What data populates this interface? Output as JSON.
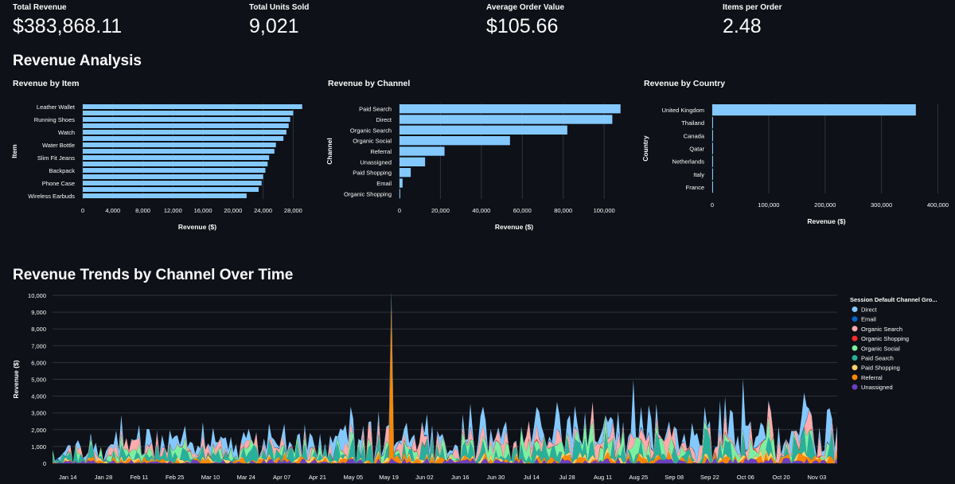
{
  "metrics": [
    {
      "label": "Total Revenue",
      "value": "$383,868.11"
    },
    {
      "label": "Total Units Sold",
      "value": "9,021"
    },
    {
      "label": "Average Order Value",
      "value": "$105.66"
    },
    {
      "label": "Items per Order",
      "value": "2.48"
    }
  ],
  "sections": {
    "revenue_analysis": "Revenue Analysis",
    "revenue_trends": "Revenue Trends by Channel Over Time"
  },
  "colors": {
    "bar": "#83c9ff",
    "grid": "#31333f",
    "Direct": "#83c9ff",
    "Email": "#0068c9",
    "Organic Search": "#ffabab",
    "Organic Shopping": "#ff2b2b",
    "Organic Social": "#7defa1",
    "Paid Search": "#29b09d",
    "Paid Shopping": "#ffd16a",
    "Referral": "#ff8700",
    "Unassigned": "#6d3fc0"
  },
  "chart_data": [
    {
      "type": "bar",
      "orientation": "horizontal",
      "title": "Revenue by Item",
      "xlabel": "Revenue ($)",
      "ylabel": "Item",
      "xlim": [
        0,
        30500
      ],
      "xticks": [
        0,
        4000,
        8000,
        12000,
        16000,
        20000,
        24000,
        28000
      ],
      "xtick_labels": [
        "0",
        "4,000",
        "8,000",
        "12,000",
        "16,000",
        "20,000",
        "24,000",
        "28,000"
      ],
      "category_labels": [
        "Leather Wallet",
        "",
        "Running Shoes",
        "",
        "Watch",
        "",
        "Water Bottle",
        "",
        "Slim Fit Jeans",
        "",
        "Backpack",
        "",
        "Phone Case",
        "",
        "Wireless Earbuds"
      ],
      "values": [
        29200,
        28000,
        27600,
        27400,
        27100,
        26700,
        25700,
        25500,
        24800,
        24600,
        24300,
        24000,
        23800,
        23400,
        21800
      ]
    },
    {
      "type": "bar",
      "orientation": "horizontal",
      "title": "Revenue by Channel",
      "xlabel": "Revenue ($)",
      "ylabel": "Channel",
      "xlim": [
        0,
        112000
      ],
      "xticks": [
        0,
        20000,
        40000,
        60000,
        80000,
        100000
      ],
      "xtick_labels": [
        "0",
        "20,000",
        "40,000",
        "60,000",
        "80,000",
        "100,000"
      ],
      "categories": [
        "Paid Search",
        "Direct",
        "Organic Search",
        "Organic Social",
        "Referral",
        "Unassigned",
        "Paid Shopping",
        "Email",
        "Organic Shopping"
      ],
      "values": [
        108000,
        104000,
        82000,
        54000,
        22000,
        12500,
        5500,
        1500,
        300
      ]
    },
    {
      "type": "bar",
      "orientation": "horizontal",
      "title": "Revenue by Country",
      "xlabel": "Revenue ($)",
      "ylabel": "Country",
      "xlim": [
        0,
        405000
      ],
      "xticks": [
        0,
        100000,
        200000,
        300000,
        400000
      ],
      "xtick_labels": [
        "0",
        "100,000",
        "200,000",
        "300,000",
        "400,000"
      ],
      "categories": [
        "United Kingdom",
        "Thailand",
        "Canada",
        "Qatar",
        "Netherlands",
        "Italy",
        "France"
      ],
      "values": [
        361000,
        900,
        700,
        500,
        300,
        200,
        100
      ]
    },
    {
      "type": "area",
      "stacked": true,
      "title": "Revenue Trends by Channel Over Time",
      "ylabel": "Revenue ($)",
      "ylim": [
        0,
        10000
      ],
      "yticks": [
        0,
        1000,
        2000,
        3000,
        4000,
        5000,
        6000,
        7000,
        8000,
        9000,
        10000
      ],
      "ytick_labels": [
        "0",
        "1,000",
        "2,000",
        "3,000",
        "4,000",
        "5,000",
        "6,000",
        "7,000",
        "8,000",
        "9,000",
        "10,000"
      ],
      "x_start": "Jan 08",
      "x_end": "Nov 11",
      "n_days": 309,
      "x_ticks": [
        {
          "label": "Jan 14",
          "day": 6
        },
        {
          "label": "Jan 28",
          "day": 20
        },
        {
          "label": "Feb 11",
          "day": 34
        },
        {
          "label": "Feb 25",
          "day": 48
        },
        {
          "label": "Mar 10",
          "day": 62
        },
        {
          "label": "Mar 24",
          "day": 76
        },
        {
          "label": "Apr 07",
          "day": 90
        },
        {
          "label": "Apr 21",
          "day": 104
        },
        {
          "label": "May 05",
          "day": 118
        },
        {
          "label": "May 19",
          "day": 132
        },
        {
          "label": "Jun 02",
          "day": 146
        },
        {
          "label": "Jun 16",
          "day": 160
        },
        {
          "label": "Jun 30",
          "day": 174
        },
        {
          "label": "Jul 14",
          "day": 188
        },
        {
          "label": "Jul 28",
          "day": 202
        },
        {
          "label": "Aug 11",
          "day": 216
        },
        {
          "label": "Aug 25",
          "day": 230
        },
        {
          "label": "Sep 08",
          "day": 244
        },
        {
          "label": "Sep 22",
          "day": 258
        },
        {
          "label": "Oct 06",
          "day": 272
        },
        {
          "label": "Oct 20",
          "day": 286
        },
        {
          "label": "Nov 03",
          "day": 300
        }
      ],
      "legend_title": "Session Default Channel Gro...",
      "legend_position": "right",
      "series_order": [
        "Unassigned",
        "Referral",
        "Paid Shopping",
        "Paid Search",
        "Organic Social",
        "Organic Shopping",
        "Organic Search",
        "Email",
        "Direct"
      ],
      "legend_order": [
        "Direct",
        "Email",
        "Organic Search",
        "Organic Shopping",
        "Organic Social",
        "Paid Search",
        "Paid Shopping",
        "Referral",
        "Unassigned"
      ],
      "series_scale": {
        "Unassigned": 130,
        "Referral": 170,
        "Paid Shopping": 120,
        "Paid Search": 520,
        "Organic Social": 420,
        "Organic Shopping": 35,
        "Organic Search": 430,
        "Email": 35,
        "Direct": 600
      },
      "peaks": [
        {
          "day": 133,
          "series": "Referral",
          "value": 9300
        },
        {
          "day": 228,
          "series": "Direct",
          "value": 3500
        },
        {
          "day": 271,
          "series": "Direct",
          "value": 3000
        },
        {
          "day": 282,
          "series": "Organic Search",
          "value": 1800
        },
        {
          "day": 295,
          "series": "Direct",
          "value": 2000
        },
        {
          "day": 305,
          "series": "Direct",
          "value": 2200
        }
      ]
    }
  ]
}
